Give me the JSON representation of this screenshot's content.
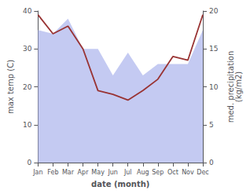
{
  "chart_data": {
    "type": "line",
    "categories": [
      "Jan",
      "Feb",
      "Mar",
      "Apr",
      "May",
      "Jun",
      "Jul",
      "Aug",
      "Sep",
      "Oct",
      "Nov",
      "Dec"
    ],
    "xlabel": "date (month)",
    "ylabel": "max temp (C)",
    "y2label": "med. precipitation\n(kg/m2)",
    "ylim": [
      0,
      40
    ],
    "yticks": [
      0,
      10,
      20,
      30,
      40
    ],
    "y2lim": [
      0,
      20
    ],
    "y2ticks": [
      0,
      5,
      10,
      15,
      20
    ],
    "grid": false,
    "series": [
      {
        "type": "area",
        "axis": "y2",
        "color": "#b0b8ee",
        "values": [
          17.5,
          17.0,
          19.0,
          15.0,
          15.0,
          11.5,
          14.5,
          11.5,
          13.0,
          13.0,
          13.0,
          17.5
        ]
      },
      {
        "type": "line",
        "color": "#993333",
        "values": [
          39,
          34,
          36,
          30,
          19,
          18,
          16.5,
          19,
          22,
          28,
          27,
          39
        ]
      }
    ]
  }
}
